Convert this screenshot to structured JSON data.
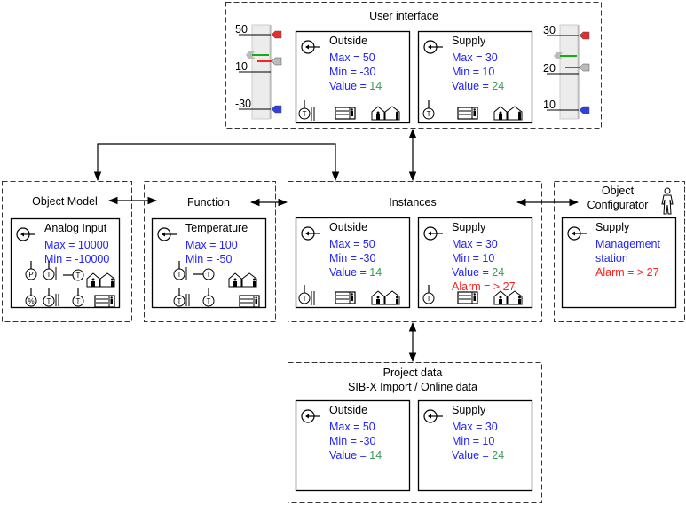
{
  "colors": {
    "text": "#000000",
    "param": "#2323ff",
    "value": "#3a9a5a",
    "alarm": "#ff2020",
    "max_marker": "#e03030",
    "min_marker": "#3040e0",
    "setpoint_green": "#10b010",
    "setpoint_red": "#ff2020"
  },
  "groups": {
    "user_interface": {
      "title": "User interface"
    },
    "object_model": {
      "title": "Object Model"
    },
    "function": {
      "title": "Function"
    },
    "instances": {
      "title": "Instances"
    },
    "object_configurator": {
      "title_line1": "Object",
      "title_line2": "Configurator",
      "icon": "person-icon"
    },
    "project_data": {
      "title_line1": "Project data",
      "title_line2": "SIB-X Import / Online data"
    }
  },
  "scales": {
    "left": {
      "labels": [
        "50",
        "10",
        "-30"
      ]
    },
    "right": {
      "labels": [
        "30",
        "20",
        "10"
      ]
    }
  },
  "cards": {
    "ui_outside": {
      "title": "Outside",
      "lines": [
        {
          "label": "Max =  50"
        },
        {
          "label": "Min  = -30"
        },
        {
          "label": "Value = ",
          "value": "14"
        }
      ],
      "icons": [
        "temp-sensor-pipe-icon",
        "panel-icon",
        "house-icon"
      ]
    },
    "ui_supply": {
      "title": "Supply",
      "lines": [
        {
          "label": "Max =  30"
        },
        {
          "label": "Min  =  10"
        },
        {
          "label": "Value = ",
          "value": "24"
        }
      ],
      "icons": [
        "temp-sensor-icon",
        "panel-icon",
        "house-icon"
      ]
    },
    "object_model": {
      "title": "Analog Input",
      "lines": [
        {
          "label": "Max =  10000"
        },
        {
          "label": "Min  = -10000"
        }
      ]
    },
    "function": {
      "title": "Temperature",
      "lines": [
        {
          "label": "Max = 100"
        },
        {
          "label": "Min  =  -50"
        }
      ]
    },
    "inst_outside": {
      "title": "Outside",
      "lines": [
        {
          "label": "Max =  50"
        },
        {
          "label": "Min  = -30"
        },
        {
          "label": "Value = ",
          "value": "14"
        }
      ],
      "icons": [
        "temp-sensor-pipe-icon",
        "panel-icon",
        "house-icon"
      ]
    },
    "inst_supply": {
      "title": "Supply",
      "lines": [
        {
          "label": "Max =  30"
        },
        {
          "label": "Min  =  10"
        },
        {
          "label": "Value = ",
          "value": "24"
        },
        {
          "alarm": "Alarm = > 27"
        }
      ],
      "icons": [
        "temp-sensor-icon",
        "panel-icon",
        "house-icon"
      ]
    },
    "configurator": {
      "title": "Supply",
      "lines": [
        {
          "label": "Management"
        },
        {
          "label": "station"
        },
        {
          "alarm": "Alarm = > 27"
        }
      ]
    },
    "proj_outside": {
      "title": "Outside",
      "lines": [
        {
          "label": "Max =  50"
        },
        {
          "label": "Min  = -30"
        },
        {
          "label": "Value = ",
          "value": "14"
        }
      ]
    },
    "proj_supply": {
      "title": "Supply",
      "lines": [
        {
          "label": "Max =  30"
        },
        {
          "label": "Min  =  10"
        },
        {
          "label": "Value = ",
          "value": "24"
        }
      ]
    }
  }
}
